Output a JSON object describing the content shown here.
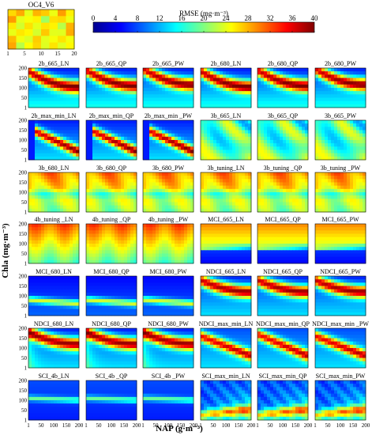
{
  "chart_data": {
    "type": "heatmap",
    "xlabel": "NAP (g·m⁻³)",
    "ylabel": "Chla (mg·m⁻³)",
    "colorbar": {
      "title": "RMSE (mg·m⁻³)",
      "ticks": [
        0,
        4,
        8,
        12,
        16,
        20,
        24,
        28,
        32,
        36,
        40
      ],
      "range": [
        0,
        40
      ],
      "colormap": "jet",
      "colors": [
        "#00008f",
        "#0000ff",
        "#0080ff",
        "#00ffff",
        "#80ff80",
        "#ffff00",
        "#ff8000",
        "#ff0000",
        "#800000"
      ]
    },
    "reference_panel": {
      "title": "OC4_V6",
      "xticks": [
        "1",
        "5",
        "10",
        "15",
        "20"
      ],
      "yticks": [
        "20",
        "15",
        "10",
        "5",
        "1"
      ],
      "xrange": [
        1,
        20
      ],
      "yrange": [
        1,
        20
      ],
      "rmse_approx": 25
    },
    "panel_axes": {
      "xticks": [
        "1",
        "50",
        "100",
        "150",
        "200"
      ],
      "yticks": [
        "200",
        "150",
        "100",
        "50",
        "1"
      ],
      "xrange": [
        1,
        200
      ],
      "yrange": [
        1,
        200
      ]
    },
    "panels": [
      {
        "title": "2b_665_LN"
      },
      {
        "title": "2b_665_QP"
      },
      {
        "title": "2b_665_PW"
      },
      {
        "title": "2b_680_LN"
      },
      {
        "title": "2b_680_QP"
      },
      {
        "title": "2b_680_PW"
      },
      {
        "title": "2b_max_min_LN"
      },
      {
        "title": "2b_max_min_QP"
      },
      {
        "title": "2b_max_min _PW"
      },
      {
        "title": "3b_665_LN"
      },
      {
        "title": "3b_665_QP"
      },
      {
        "title": "3b_665_PW"
      },
      {
        "title": "3b_680_LN"
      },
      {
        "title": "3b_680_QP"
      },
      {
        "title": "3b_680_PW"
      },
      {
        "title": "3b_tuning_LN"
      },
      {
        "title": "3b_tuning _QP"
      },
      {
        "title": "3b_tuning _PW"
      },
      {
        "title": "4b_tuning _LN"
      },
      {
        "title": "4b_tuning _QP"
      },
      {
        "title": "4b_tuning _PW"
      },
      {
        "title": "MCI_665_LN"
      },
      {
        "title": "MCI_665_QP"
      },
      {
        "title": "MCI_665_PW"
      },
      {
        "title": "MCI_680_LN"
      },
      {
        "title": "MCI_680_QP"
      },
      {
        "title": "MCI_680_PW"
      },
      {
        "title": "NDCI_665_LN"
      },
      {
        "title": "NDCI_665_QP"
      },
      {
        "title": "NDCI_665_PW"
      },
      {
        "title": "NDCI_680_LN"
      },
      {
        "title": "NDCI_680_QP"
      },
      {
        "title": "NDCI_680_PW"
      },
      {
        "title": "NDCI_max_min_LN"
      },
      {
        "title": "NDCI_max_min_QP"
      },
      {
        "title": "NDCI_max_min _PW"
      },
      {
        "title": "SCI_4b_LN"
      },
      {
        "title": "SCI_4b _QP"
      },
      {
        "title": "SCI_4b _PW"
      },
      {
        "title": "SCI_max_min_LN"
      },
      {
        "title": "SCI_max_min_QP"
      },
      {
        "title": "SCI_max_min_PW"
      }
    ]
  }
}
